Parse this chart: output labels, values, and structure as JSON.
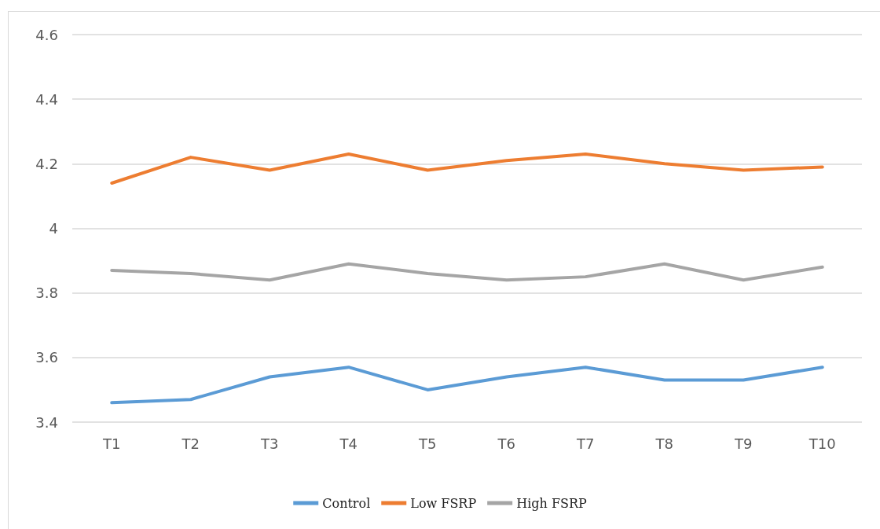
{
  "chart_data": {
    "type": "line",
    "categories": [
      "T1",
      "T2",
      "T3",
      "T4",
      "T5",
      "T6",
      "T7",
      "T8",
      "T9",
      "T10"
    ],
    "series": [
      {
        "name": "Control",
        "color": "#5b9bd5",
        "values": [
          3.46,
          3.47,
          3.54,
          3.57,
          3.5,
          3.54,
          3.57,
          3.53,
          3.53,
          3.57
        ]
      },
      {
        "name": "Low FSRP",
        "color": "#ed7d31",
        "values": [
          4.14,
          4.22,
          4.18,
          4.23,
          4.18,
          4.21,
          4.23,
          4.2,
          4.18,
          4.19
        ]
      },
      {
        "name": "High FSRP",
        "color": "#a5a5a5",
        "values": [
          3.87,
          3.86,
          3.84,
          3.89,
          3.86,
          3.84,
          3.85,
          3.89,
          3.84,
          3.88
        ]
      }
    ],
    "ylim": [
      3.4,
      4.6
    ],
    "yticks": [
      3.4,
      3.6,
      3.8,
      4,
      4.2,
      4.4,
      4.6
    ],
    "grid": "y",
    "legend": "bottom",
    "marker": "none",
    "line_style": "solid"
  }
}
